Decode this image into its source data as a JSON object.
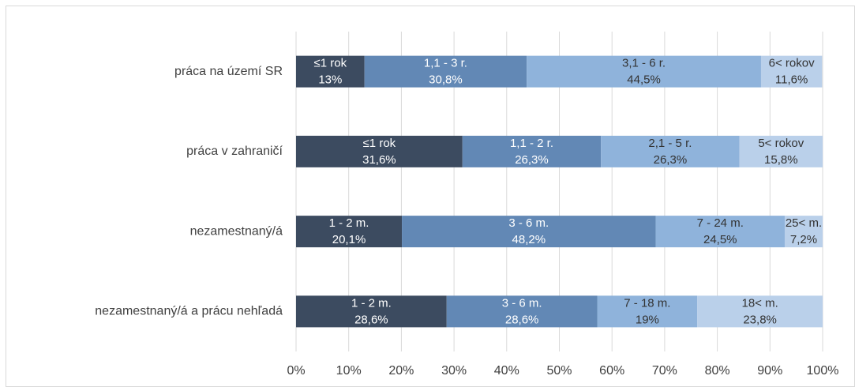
{
  "chart_data": {
    "type": "stacked_bar_h",
    "categories": [
      "práca na území SR",
      "práca v zahraničí",
      "nezamestnaný/á",
      "nezamestnaný/á a prácu nehľadá"
    ],
    "series": [
      {
        "color": "#3c4b60",
        "label_color": "#ffffff",
        "values": [
          13,
          31.6,
          20.1,
          28.6
        ],
        "value_labels": [
          "13%",
          "31,6%",
          "20,1%",
          "28,6%"
        ],
        "labels": [
          "≤1 rok",
          "≤1 rok",
          "1 - 2 m.",
          "1 - 2 m."
        ]
      },
      {
        "color": "#6288b5",
        "label_color": "#ffffff",
        "values": [
          30.8,
          26.3,
          48.2,
          28.6
        ],
        "value_labels": [
          "30,8%",
          "26,3%",
          "48,2%",
          "28,6%"
        ],
        "labels": [
          "1,1 - 3 r.",
          "1,1 - 2 r.",
          "3 - 6 m.",
          "3 - 6 m."
        ]
      },
      {
        "color": "#8fb3db",
        "label_color": "#333333",
        "values": [
          44.5,
          26.3,
          24.5,
          19
        ],
        "value_labels": [
          "44,5%",
          "26,3%",
          "24,5%",
          "19%"
        ],
        "labels": [
          "3,1 - 6 r.",
          "2,1 - 5 r.",
          "7 - 24 m.",
          "7 - 18 m."
        ]
      },
      {
        "color": "#bad0ea",
        "label_color": "#333333",
        "values": [
          11.6,
          15.8,
          7.2,
          23.8
        ],
        "value_labels": [
          "11,6%",
          "15,8%",
          "7,2%",
          "23,8%"
        ],
        "labels": [
          "6< rokov",
          "5< rokov",
          "25< m.",
          "18< m."
        ]
      }
    ],
    "xlim": [
      0,
      100
    ],
    "xticks": [
      {
        "value": 0,
        "label": "0%"
      },
      {
        "value": 10,
        "label": "10%"
      },
      {
        "value": 20,
        "label": "20%"
      },
      {
        "value": 30,
        "label": "30%"
      },
      {
        "value": 40,
        "label": "40%"
      },
      {
        "value": 50,
        "label": "50%"
      },
      {
        "value": 60,
        "label": "60%"
      },
      {
        "value": 70,
        "label": "70%"
      },
      {
        "value": 80,
        "label": "80%"
      },
      {
        "value": 90,
        "label": "90%"
      },
      {
        "value": 100,
        "label": "100%"
      }
    ],
    "grid": true
  }
}
